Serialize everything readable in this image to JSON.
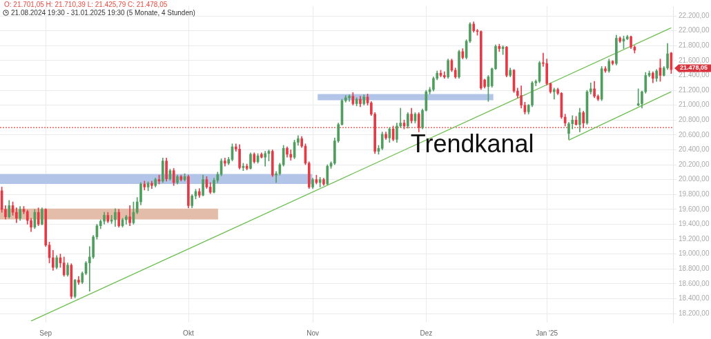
{
  "chart_data": {
    "type": "candlestick",
    "title": "O: 21.701,05  H: 21.710,39  L: 21.425,79  C: 21.478,05",
    "subtitle": "21.08.2024 19:30 - 31.01.2025 19:30  (5 Monate, 4 Stunden)",
    "categories": [
      null,
      null,
      null,
      null,
      null,
      null,
      null,
      null,
      null,
      null,
      null,
      null,
      "Sep",
      null,
      null,
      null,
      null,
      null,
      null,
      null,
      null,
      null,
      null,
      null,
      null,
      null,
      null,
      null,
      null,
      null,
      null,
      null,
      null,
      null,
      null,
      null,
      null,
      null,
      null,
      null,
      null,
      null,
      null,
      null,
      null,
      null,
      null,
      null,
      null,
      null,
      null,
      "Okt",
      null,
      null,
      null,
      null,
      null,
      null,
      null,
      null,
      null,
      null,
      null,
      null,
      null,
      null,
      null,
      null,
      null,
      null,
      null,
      null,
      null,
      null,
      null,
      null,
      null,
      null,
      null,
      null,
      null,
      null,
      null,
      null,
      null,
      "Nov",
      null,
      null,
      null,
      null,
      null,
      null,
      null,
      null,
      null,
      null,
      null,
      null,
      null,
      null,
      null,
      null,
      null,
      null,
      null,
      null,
      null,
      null,
      null,
      null,
      null,
      null,
      null,
      null,
      null,
      null,
      "Dez",
      null,
      null,
      null,
      null,
      null,
      null,
      null,
      null,
      null,
      null,
      null,
      null,
      null,
      null,
      null,
      null,
      null,
      null,
      null,
      null,
      null,
      null,
      null,
      null,
      null,
      null,
      null,
      null,
      null,
      null,
      null,
      null,
      "Jan '25",
      null,
      null,
      null,
      null,
      null,
      null,
      null,
      null,
      null,
      null,
      null,
      null,
      null,
      null,
      null,
      null,
      null,
      null,
      null,
      null,
      null,
      null,
      null,
      null,
      null,
      null,
      null,
      null,
      null,
      null,
      null,
      null,
      null,
      null
    ],
    "ohlc": [
      [
        19850,
        19900,
        19560,
        19600
      ],
      [
        19600,
        19650,
        19470,
        19500
      ],
      [
        19500,
        19720,
        19480,
        19650
      ],
      [
        19650,
        19700,
        19520,
        19560
      ],
      [
        19560,
        19620,
        19420,
        19480
      ],
      [
        19480,
        19640,
        19450,
        19600
      ],
      [
        19600,
        19640,
        19540,
        19570
      ],
      [
        19570,
        19590,
        19400,
        19450
      ],
      [
        19450,
        19480,
        19300,
        19360
      ],
      [
        19360,
        19600,
        19340,
        19560
      ],
      [
        19560,
        19620,
        19380,
        19400
      ],
      [
        19400,
        19620,
        19390,
        19600
      ],
      [
        19600,
        19610,
        19100,
        19120
      ],
      [
        19120,
        19160,
        18880,
        18950
      ],
      [
        18950,
        19050,
        18780,
        18820
      ],
      [
        18820,
        18980,
        18800,
        18950
      ],
      [
        18950,
        19000,
        18820,
        18880
      ],
      [
        18880,
        18960,
        18700,
        18720
      ],
      [
        18720,
        18880,
        18700,
        18850
      ],
      [
        18850,
        18870,
        18400,
        18430
      ],
      [
        18430,
        18660,
        18410,
        18650
      ],
      [
        18650,
        18700,
        18590,
        18620
      ],
      [
        18620,
        18760,
        18600,
        18740
      ],
      [
        18740,
        18900,
        18720,
        18880
      ],
      [
        18880,
        19100,
        18500,
        18960
      ],
      [
        18960,
        19250,
        18940,
        19230
      ],
      [
        19230,
        19400,
        19200,
        19380
      ],
      [
        19380,
        19460,
        19340,
        19440
      ],
      [
        19440,
        19560,
        19400,
        19520
      ],
      [
        19520,
        19560,
        19420,
        19440
      ],
      [
        19440,
        19520,
        19410,
        19460
      ],
      [
        19460,
        19610,
        19370,
        19560
      ],
      [
        19560,
        19600,
        19360,
        19380
      ],
      [
        19380,
        19480,
        19360,
        19460
      ],
      [
        19460,
        19520,
        19400,
        19500
      ],
      [
        19500,
        19650,
        19380,
        19420
      ],
      [
        19420,
        19700,
        19400,
        19560
      ],
      [
        19560,
        19760,
        19540,
        19700
      ],
      [
        19700,
        19960,
        19660,
        19940
      ],
      [
        19940,
        19980,
        19860,
        19900
      ],
      [
        19900,
        19970,
        19850,
        19950
      ],
      [
        19950,
        19980,
        19880,
        19920
      ],
      [
        19920,
        20020,
        19900,
        20000
      ],
      [
        20000,
        20060,
        19940,
        19980
      ],
      [
        19980,
        20290,
        19960,
        20250
      ],
      [
        20250,
        20290,
        19980,
        20010
      ],
      [
        20010,
        20140,
        19990,
        20120
      ],
      [
        20120,
        20150,
        19920,
        19960
      ],
      [
        19960,
        20060,
        19940,
        20040
      ],
      [
        20040,
        20060,
        19980,
        20000
      ],
      [
        20000,
        20080,
        19980,
        20040
      ],
      [
        20040,
        20060,
        19620,
        19650
      ],
      [
        19650,
        19800,
        19620,
        19780
      ],
      [
        19780,
        19870,
        19740,
        19840
      ],
      [
        19840,
        19880,
        19760,
        19790
      ],
      [
        19790,
        20060,
        19780,
        20000
      ],
      [
        20000,
        20040,
        19880,
        19900
      ],
      [
        19900,
        19960,
        19810,
        19830
      ],
      [
        19830,
        20020,
        19820,
        19990
      ],
      [
        19990,
        20100,
        19960,
        20070
      ],
      [
        20070,
        20280,
        20050,
        20250
      ],
      [
        20250,
        20290,
        20180,
        20220
      ],
      [
        20220,
        20300,
        20200,
        20270
      ],
      [
        20270,
        20480,
        20250,
        20440
      ],
      [
        20440,
        20480,
        20380,
        20410
      ],
      [
        20410,
        20470,
        20140,
        20160
      ],
      [
        20160,
        20220,
        20120,
        20180
      ],
      [
        20180,
        20210,
        20130,
        20150
      ],
      [
        20150,
        20360,
        20140,
        20340
      ],
      [
        20340,
        20360,
        20220,
        20240
      ],
      [
        20240,
        20350,
        20220,
        20320
      ],
      [
        20340,
        20360,
        20290,
        20300
      ],
      [
        20300,
        20380,
        20180,
        20350
      ],
      [
        20350,
        20400,
        20250,
        20380
      ],
      [
        20380,
        20400,
        20040,
        20060
      ],
      [
        20060,
        20110,
        19960,
        20080
      ],
      [
        20080,
        20220,
        20060,
        20200
      ],
      [
        20200,
        20460,
        20180,
        20420
      ],
      [
        20420,
        20440,
        20300,
        20340
      ],
      [
        20340,
        20400,
        20260,
        20300
      ],
      [
        20300,
        20530,
        20280,
        20500
      ],
      [
        20500,
        20590,
        20460,
        20550
      ],
      [
        20550,
        20580,
        20430,
        20450
      ],
      [
        20450,
        20480,
        20200,
        20220
      ],
      [
        20220,
        20240,
        19880,
        19900
      ],
      [
        19900,
        20020,
        19880,
        20000
      ],
      [
        20000,
        20060,
        19940,
        19960
      ],
      [
        19960,
        20030,
        19900,
        20000
      ],
      [
        20000,
        20020,
        19920,
        19940
      ],
      [
        19940,
        20200,
        19930,
        20180
      ],
      [
        20180,
        20240,
        20150,
        20220
      ],
      [
        20220,
        20560,
        20200,
        20520
      ],
      [
        20520,
        20760,
        20500,
        20740
      ],
      [
        20740,
        21080,
        20730,
        21060
      ],
      [
        21060,
        21130,
        21040,
        21100
      ],
      [
        21100,
        21140,
        21050,
        21120
      ],
      [
        21120,
        21170,
        21000,
        21020
      ],
      [
        21020,
        21100,
        20990,
        21080
      ],
      [
        21080,
        21120,
        20980,
        21020
      ],
      [
        21020,
        21140,
        21000,
        21110
      ],
      [
        21110,
        21150,
        21000,
        21030
      ],
      [
        21030,
        21050,
        20860,
        20880
      ],
      [
        20880,
        20900,
        20350,
        20380
      ],
      [
        20380,
        20460,
        20340,
        20420
      ],
      [
        20420,
        20640,
        20400,
        20610
      ],
      [
        20610,
        20640,
        20540,
        20560
      ],
      [
        20560,
        20700,
        20500,
        20680
      ],
      [
        20680,
        20720,
        20520,
        20540
      ],
      [
        20540,
        20760,
        20500,
        20720
      ],
      [
        20720,
        20960,
        20700,
        20760
      ],
      [
        20760,
        20800,
        20680,
        20720
      ],
      [
        20720,
        20900,
        20690,
        20880
      ],
      [
        20880,
        20960,
        20760,
        20790
      ],
      [
        20790,
        20900,
        20760,
        20880
      ],
      [
        20880,
        20900,
        20640,
        20700
      ],
      [
        20700,
        20950,
        20680,
        20930
      ],
      [
        20930,
        21200,
        20920,
        21180
      ],
      [
        21180,
        21240,
        21150,
        21210
      ],
      [
        21210,
        21380,
        21190,
        21360
      ],
      [
        21360,
        21460,
        21340,
        21430
      ],
      [
        21430,
        21470,
        21380,
        21400
      ],
      [
        21400,
        21450,
        21360,
        21380
      ],
      [
        21380,
        21620,
        21360,
        21600
      ],
      [
        21600,
        21620,
        21450,
        21470
      ],
      [
        21470,
        21500,
        21360,
        21380
      ],
      [
        21380,
        21740,
        21360,
        21720
      ],
      [
        21720,
        21760,
        21620,
        21640
      ],
      [
        21640,
        21880,
        21620,
        21860
      ],
      [
        21860,
        22110,
        21840,
        22090
      ],
      [
        22090,
        22120,
        21980,
        22000
      ],
      [
        22000,
        22020,
        21940,
        21990
      ],
      [
        21990,
        22000,
        21210,
        21230
      ],
      [
        21340,
        21350,
        21230,
        21250
      ],
      [
        21250,
        21400,
        21050,
        21380
      ],
      [
        21260,
        21500,
        21240,
        21490
      ],
      [
        21490,
        21810,
        21480,
        21790
      ],
      [
        21790,
        21820,
        21720,
        21760
      ],
      [
        21760,
        21800,
        21680,
        21780
      ],
      [
        21780,
        21790,
        21380,
        21400
      ],
      [
        21400,
        21500,
        21380,
        21470
      ],
      [
        21470,
        21480,
        21170,
        21190
      ],
      [
        21190,
        21230,
        21100,
        21130
      ],
      [
        21130,
        21260,
        20960,
        21000
      ],
      [
        21000,
        21040,
        20880,
        20910
      ],
      [
        20910,
        21010,
        20880,
        21000
      ],
      [
        21000,
        21320,
        20980,
        21300
      ],
      [
        21300,
        21340,
        21260,
        21320
      ],
      [
        21320,
        21590,
        21300,
        21570
      ],
      [
        21570,
        21700,
        21520,
        21560
      ],
      [
        21560,
        21620,
        21270,
        21290
      ],
      [
        21290,
        21300,
        21160,
        21180
      ],
      [
        21180,
        21230,
        21080,
        21210
      ],
      [
        21210,
        21230,
        21140,
        21160
      ],
      [
        21160,
        21170,
        20820,
        20840
      ],
      [
        20840,
        20880,
        20720,
        20760
      ],
      [
        20620,
        20770,
        20540,
        20750
      ],
      [
        20750,
        20860,
        20680,
        20800
      ],
      [
        20800,
        20850,
        20730,
        20740
      ],
      [
        20740,
        20960,
        20640,
        20900
      ],
      [
        20900,
        20920,
        20700,
        20760
      ],
      [
        20760,
        21200,
        20740,
        21180
      ],
      [
        21180,
        21300,
        21150,
        21220
      ],
      [
        21220,
        21320,
        21100,
        21120
      ],
      [
        21120,
        21140,
        21060,
        21080
      ],
      [
        21080,
        21520,
        21060,
        21490
      ],
      [
        21490,
        21520,
        21440,
        21460
      ],
      [
        21460,
        21620,
        21440,
        21590
      ],
      [
        21590,
        21600,
        21540,
        21560
      ],
      [
        21560,
        21940,
        21540,
        21900
      ],
      [
        21900,
        21920,
        21840,
        21860
      ],
      [
        21860,
        21930,
        21760,
        21890
      ],
      [
        21890,
        21940,
        21880,
        21920
      ],
      [
        21920,
        21930,
        21760,
        21780
      ],
      [
        21780,
        21800,
        21700,
        21740
      ],
      [
        21000,
        21220,
        20990,
        21020
      ],
      [
        21020,
        21190,
        20960,
        21180
      ],
      [
        21180,
        21440,
        21160,
        21400
      ],
      [
        21400,
        21460,
        21380,
        21430
      ],
      [
        21430,
        21450,
        21300,
        21360
      ],
      [
        21360,
        21480,
        21320,
        21460
      ],
      [
        21500,
        21620,
        21320,
        21400
      ],
      [
        21400,
        21520,
        21390,
        21500
      ],
      [
        21500,
        21830,
        21480,
        21690
      ],
      [
        21701.05,
        21710.39,
        21425.79,
        21478.05
      ]
    ],
    "series": [
      {
        "type": "line",
        "color": "#6dbf4f",
        "values": [
          null,
          null,
          null,
          null,
          null,
          null,
          null,
          null,
          18100,
          null,
          null,
          null,
          null,
          null,
          null,
          null,
          null,
          null,
          null,
          null,
          null,
          null,
          null,
          null,
          null,
          null,
          null,
          null,
          null,
          null,
          null,
          null,
          null,
          null,
          null,
          null,
          null,
          null,
          null,
          null,
          null,
          null,
          null,
          null,
          null,
          null,
          null,
          null,
          null,
          null,
          null,
          null,
          null,
          null,
          null,
          null,
          null,
          null,
          null,
          null,
          null,
          null,
          null,
          null,
          null,
          null,
          null,
          null,
          null,
          null,
          null,
          null,
          null,
          null,
          null,
          null,
          null,
          null,
          null,
          null,
          null,
          null,
          null,
          null,
          null,
          null,
          null,
          null,
          null,
          null,
          null,
          null,
          null,
          null,
          null,
          null,
          null,
          null,
          null,
          null,
          null,
          null,
          null,
          null,
          null,
          null,
          null,
          null,
          null,
          null,
          null,
          null,
          null,
          null,
          null,
          null,
          null,
          null,
          null,
          null,
          null,
          null,
          null,
          null,
          null,
          null,
          null,
          null,
          null,
          null,
          null,
          null,
          null,
          null,
          null,
          null,
          null,
          null,
          null,
          null,
          null,
          null,
          null,
          null,
          null,
          null,
          null,
          null,
          null,
          null,
          null,
          null,
          null,
          null,
          null,
          null,
          null,
          null,
          null,
          null,
          null,
          null,
          null,
          null,
          null,
          null,
          null,
          null,
          null,
          null,
          null,
          null,
          null,
          null,
          null,
          null,
          null,
          null,
          null,
          null,
          null,
          null,
          null,
          22040
        ]
      },
      {
        "type": "line",
        "color": "#6dbf4f",
        "values": [
          null,
          null,
          null,
          null,
          null,
          null,
          null,
          null,
          null,
          null,
          null,
          null,
          null,
          null,
          null,
          null,
          null,
          null,
          null,
          null,
          null,
          null,
          null,
          null,
          null,
          null,
          null,
          null,
          null,
          null,
          null,
          null,
          null,
          null,
          null,
          null,
          null,
          null,
          null,
          null,
          null,
          null,
          null,
          null,
          null,
          null,
          null,
          null,
          null,
          null,
          null,
          null,
          null,
          null,
          null,
          null,
          null,
          null,
          null,
          null,
          null,
          null,
          null,
          null,
          null,
          null,
          null,
          null,
          null,
          null,
          null,
          null,
          null,
          null,
          null,
          null,
          null,
          null,
          null,
          null,
          null,
          null,
          null,
          null,
          null,
          null,
          null,
          null,
          null,
          null,
          null,
          null,
          null,
          null,
          null,
          null,
          null,
          null,
          null,
          null,
          null,
          null,
          null,
          null,
          null,
          null,
          null,
          null,
          null,
          null,
          null,
          null,
          null,
          null,
          null,
          null,
          null,
          null,
          null,
          null,
          null,
          null,
          null,
          null,
          null,
          null,
          null,
          null,
          null,
          null,
          null,
          null,
          null,
          null,
          null,
          null,
          null,
          null,
          null,
          null,
          null,
          null,
          null,
          null,
          null,
          null,
          null,
          null,
          null,
          null,
          null,
          null,
          null,
          null,
          null,
          20530,
          null,
          null,
          null,
          null,
          null,
          null,
          null,
          null,
          null,
          null,
          null,
          null,
          null,
          null,
          null,
          null,
          null,
          null,
          null,
          null,
          null,
          null,
          null,
          null,
          null,
          null,
          null,
          21180
        ]
      }
    ],
    "ylim": [
      18080,
      22330
    ],
    "yticks": [
      {
        "value": 18200,
        "label": "18.200,00"
      },
      {
        "value": 18400,
        "label": "18.400,00"
      },
      {
        "value": 18600,
        "label": "18.600,00"
      },
      {
        "value": 18800,
        "label": "18.800,00"
      },
      {
        "value": 19000,
        "label": "19.000,00"
      },
      {
        "value": 19200,
        "label": "19.200,00"
      },
      {
        "value": 19400,
        "label": "19.400,00"
      },
      {
        "value": 19600,
        "label": "19.600,00"
      },
      {
        "value": 19800,
        "label": "19.800,00"
      },
      {
        "value": 20000,
        "label": "20.000,00"
      },
      {
        "value": 20200,
        "label": "20.200,00"
      },
      {
        "value": 20400,
        "label": "20.400,00"
      },
      {
        "value": 20600,
        "label": "20.600,00"
      },
      {
        "value": 20800,
        "label": "20.800,00"
      },
      {
        "value": 21000,
        "label": "21.000,00"
      },
      {
        "value": 21200,
        "label": "21.200,00"
      },
      {
        "value": 21400,
        "label": "21.400,00"
      },
      {
        "value": 21600,
        "label": "21.600,00"
      },
      {
        "value": 21800,
        "label": "21.800,00"
      },
      {
        "value": 22000,
        "label": "22.000,00"
      },
      {
        "value": 22200,
        "label": "22.200,00"
      }
    ],
    "ref_lines": [
      {
        "axis": "y",
        "value": 20700,
        "color": "#e8493f",
        "line_style": "dotted"
      }
    ],
    "bands": [
      {
        "axis": "y",
        "from": 19940,
        "to": 20075,
        "color": "#b3c4e9"
      },
      {
        "axis": "y",
        "from": 21065,
        "to": 21150,
        "color": "#b3c4e9"
      },
      {
        "axis": "y",
        "from": 19465,
        "to": 19610,
        "color": "#e3bda9"
      }
    ],
    "annotations": [
      "Trendkanal",
      "21.478,05"
    ],
    "grid": true,
    "legend": false
  }
}
